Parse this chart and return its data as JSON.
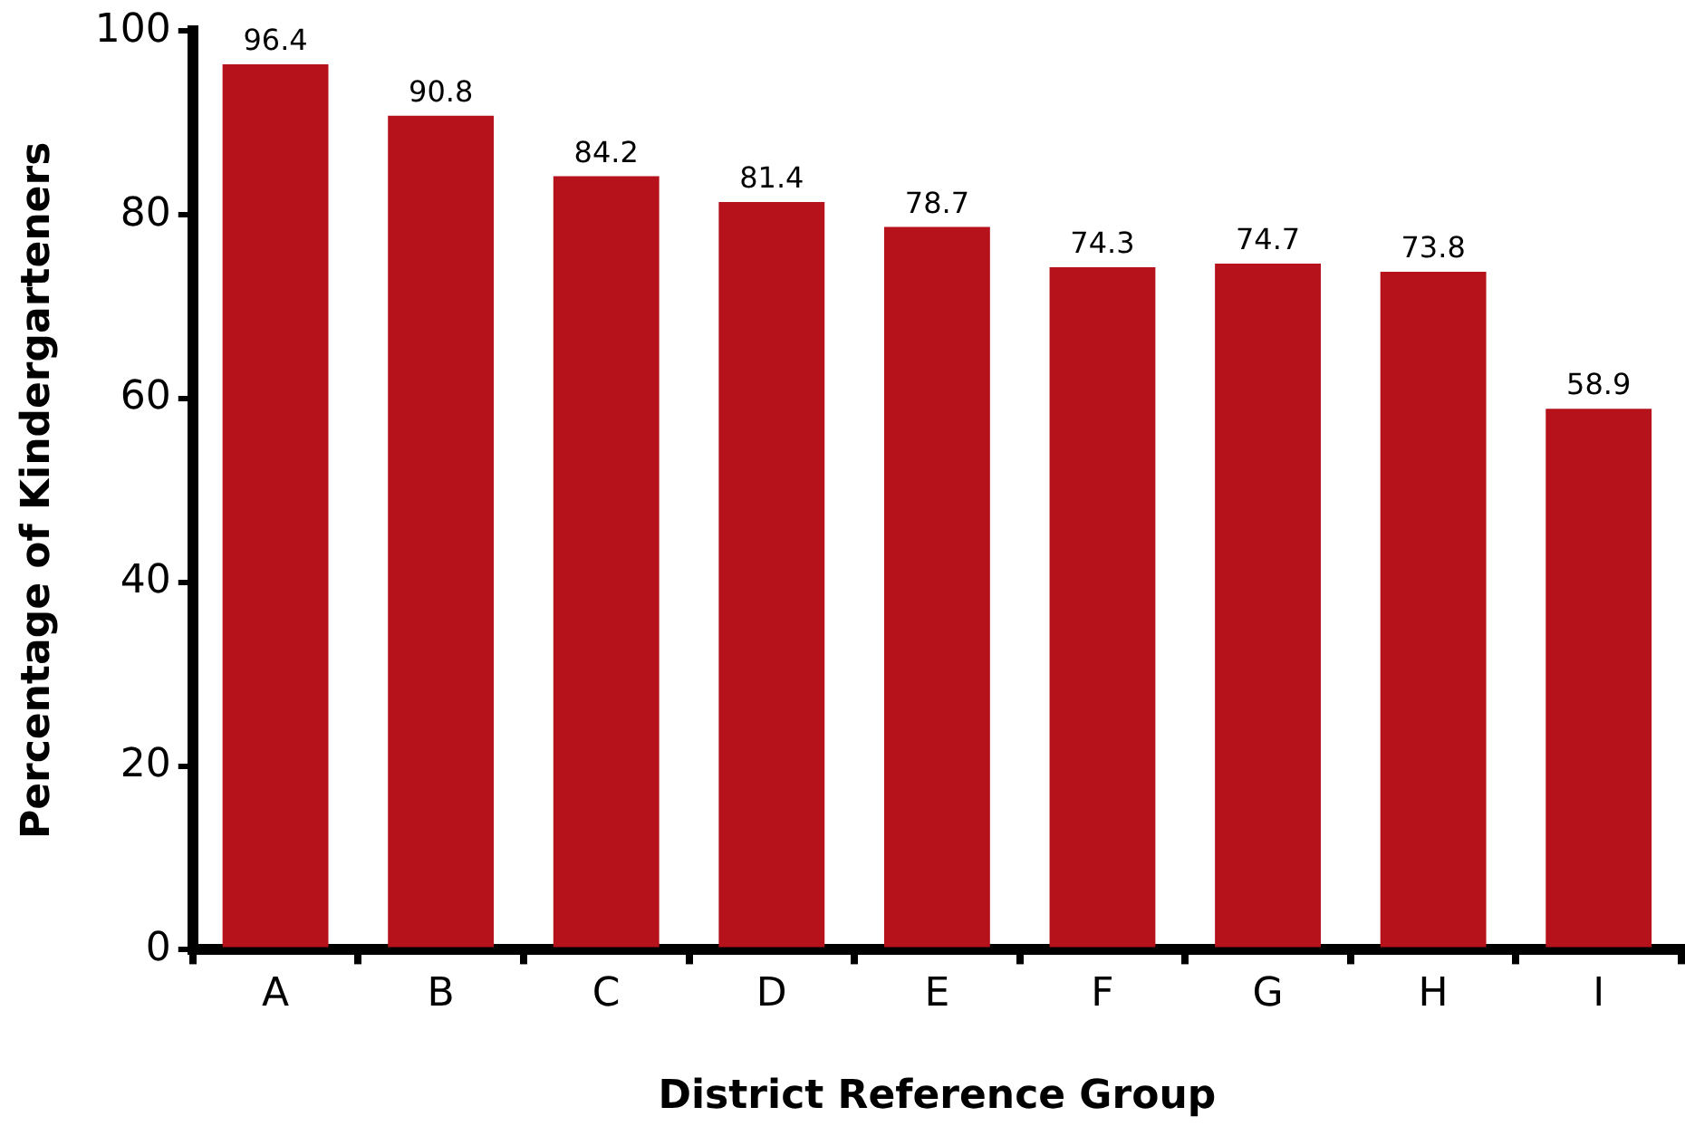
{
  "chart_data": {
    "type": "bar",
    "xlabel": "District Reference Group",
    "ylabel": "Percentage of Kindergarteners",
    "categories": [
      "A",
      "B",
      "C",
      "D",
      "E",
      "F",
      "G",
      "H",
      "I"
    ],
    "values": [
      96.4,
      90.8,
      84.2,
      81.4,
      78.7,
      74.3,
      74.7,
      73.8,
      58.9
    ],
    "color": "#b5121b",
    "ylim": [
      0,
      100
    ],
    "yticks": [
      0,
      20,
      40,
      60,
      80,
      100
    ],
    "grid": false,
    "data_labels": true,
    "legend": false
  }
}
